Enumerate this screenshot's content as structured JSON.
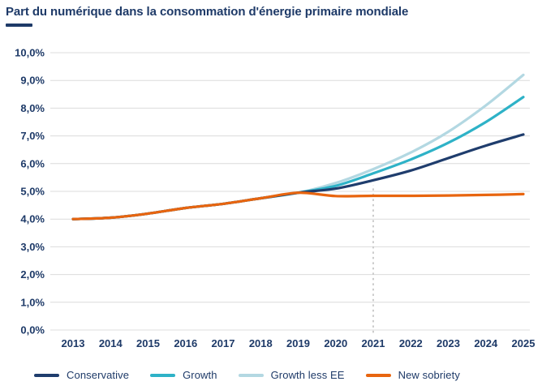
{
  "header": {
    "title": "Part du numérique dans la consommation d'énergie primaire mondiale",
    "accent_color": "#1e3a68"
  },
  "colors": {
    "text": "#1e3a68",
    "gridline": "#dcdcdc",
    "dashed_line": "#cccccc",
    "background": "#ffffff"
  },
  "chart_data": {
    "type": "line",
    "title": "Part du numérique dans la consommation d'énergie primaire mondiale",
    "xlabel": "",
    "ylabel": "",
    "x": [
      2013,
      2014,
      2015,
      2016,
      2017,
      2018,
      2019,
      2020,
      2021,
      2022,
      2023,
      2024,
      2025
    ],
    "x_tick_labels": [
      "2013",
      "2014",
      "2015",
      "2016",
      "2017",
      "2018",
      "2019",
      "2020",
      "2021",
      "2022",
      "2023",
      "2024",
      "2025"
    ],
    "ylim": [
      0,
      10
    ],
    "y_tick_step": 1,
    "y_tick_labels": [
      "0,0%",
      "1,0%",
      "2,0%",
      "3,0%",
      "4,0%",
      "5,0%",
      "6,0%",
      "7,0%",
      "8,0%",
      "9,0%",
      "10,0%"
    ],
    "grid": "horizontal",
    "legend_position": "bottom",
    "series": [
      {
        "name": "Conservative",
        "color": "#1f3d6d",
        "values": [
          4.0,
          4.05,
          4.2,
          4.4,
          4.55,
          4.75,
          4.95,
          5.1,
          5.4,
          5.75,
          6.2,
          6.65,
          7.05
        ]
      },
      {
        "name": "Growth",
        "color": "#2eb2c7",
        "values": [
          4.0,
          4.05,
          4.2,
          4.4,
          4.55,
          4.75,
          4.95,
          5.2,
          5.65,
          6.15,
          6.75,
          7.5,
          8.4
        ]
      },
      {
        "name": "Growth less EE",
        "color": "#b3d8e2",
        "values": [
          4.0,
          4.05,
          4.2,
          4.4,
          4.55,
          4.75,
          4.95,
          5.3,
          5.8,
          6.4,
          7.15,
          8.1,
          9.2
        ]
      },
      {
        "name": "New sobriety",
        "color": "#e8650f",
        "values": [
          4.0,
          4.05,
          4.2,
          4.4,
          4.55,
          4.75,
          4.95,
          4.83,
          4.84,
          4.84,
          4.85,
          4.87,
          4.9
        ]
      }
    ],
    "annotations": [
      {
        "type": "vline-dashed",
        "x": 2021,
        "from_value": -0.1,
        "to_value": 5.23,
        "color": "#cccccc"
      }
    ]
  }
}
